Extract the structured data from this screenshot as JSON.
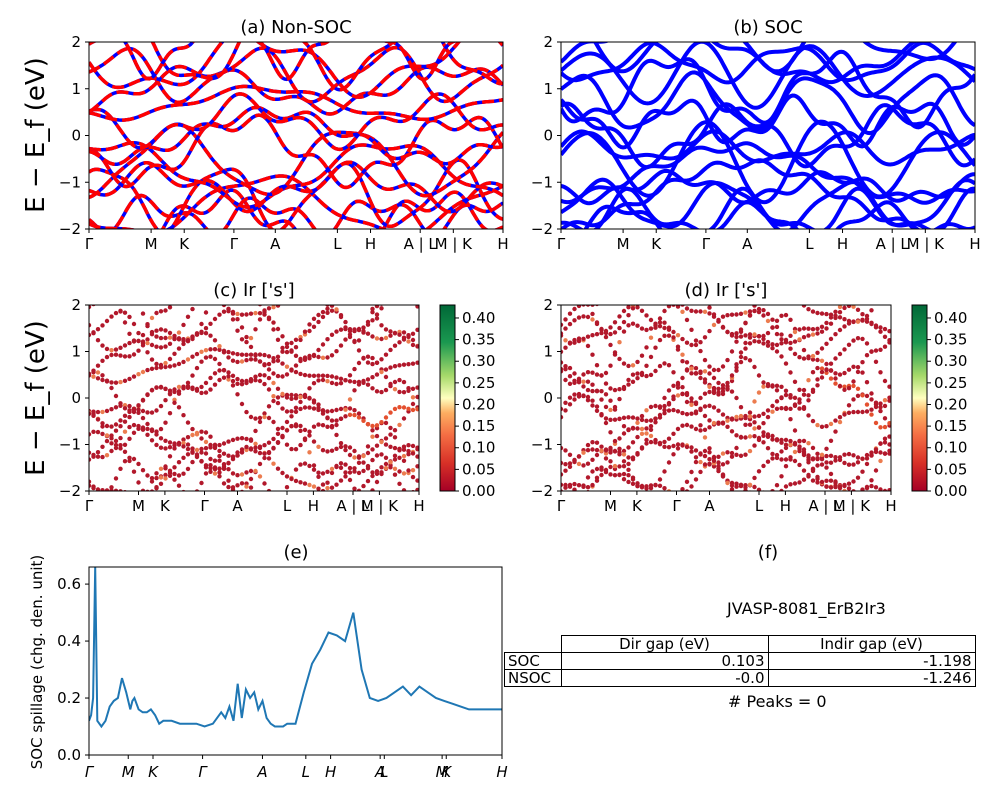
{
  "panels": {
    "a": {
      "title": "(a) Non-SOC"
    },
    "b": {
      "title": "(b) SOC"
    },
    "c": {
      "title": "(c)  Ir ['s']"
    },
    "d": {
      "title": "(d) Ir ['s']"
    },
    "e": {
      "title": "(e)"
    },
    "f": {
      "title": "(f)"
    }
  },
  "ylabel_band": "E − E_f (eV)",
  "ylabel_spillage": "SOC spillage (chg. den. unit)",
  "kpath_ticks": [
    "Γ",
    "M",
    "K",
    "Γ",
    "A",
    "L",
    "H",
    "A | L",
    "M | K",
    "H"
  ],
  "kpath_ticks_cd": [
    "Γ",
    "M",
    "K",
    "Γ",
    "A",
    "L",
    "H",
    "A | L",
    "M | K",
    "H"
  ],
  "kpath_ticks_e": [
    "Γ",
    "M",
    "K",
    "Γ",
    "A",
    "L",
    "H",
    "A",
    "L",
    "M",
    "K",
    "H"
  ],
  "energy_ticks": [
    "2",
    "1",
    "0",
    "−1",
    "−2"
  ],
  "colorbar_ticks": [
    "0.40",
    "0.35",
    "0.30",
    "0.25",
    "0.20",
    "0.15",
    "0.10",
    "0.05",
    "0.00"
  ],
  "spillage_ticks": [
    "0.6",
    "0.4",
    "0.2",
    "0.0"
  ],
  "colors": {
    "nonsoc": "#ff0000",
    "nonsoc_dash": "#0000ff",
    "soc": "#0000ff",
    "spillage": "#1f77b4"
  },
  "chart_data": [
    {
      "type": "line",
      "title": "(a) Non-SOC",
      "ylabel": "E − E_f (eV)",
      "ylim": [
        -2,
        2
      ],
      "xticklabels": [
        "Γ",
        "M",
        "K",
        "Γ",
        "A",
        "L",
        "H",
        "A | L",
        "M | K",
        "H"
      ],
      "series": [
        {
          "name": "Non-SOC bands"
        }
      ]
    },
    {
      "type": "line",
      "title": "(b) SOC",
      "ylim": [
        -2,
        2
      ],
      "xticklabels": [
        "Γ",
        "M",
        "K",
        "Γ",
        "A",
        "L",
        "H",
        "A | L",
        "M | K",
        "H"
      ],
      "series": [
        {
          "name": "SOC bands"
        }
      ]
    },
    {
      "type": "scatter",
      "title": "(c)  Ir ['s']",
      "ylabel": "E − E_f (eV)",
      "ylim": [
        -2,
        2
      ],
      "colorbar": {
        "min": 0.0,
        "max": 0.43,
        "colormap": "RdYlGn"
      }
    },
    {
      "type": "scatter",
      "title": "(d) Ir ['s']",
      "ylim": [
        -2,
        2
      ],
      "colorbar": {
        "min": 0.0,
        "max": 0.43,
        "colormap": "RdYlGn"
      }
    },
    {
      "type": "line",
      "title": "(e)",
      "ylabel": "SOC spillage (chg. den. unit)",
      "ylim": [
        0,
        0.66
      ],
      "xticklabels": [
        "Γ",
        "M",
        "K",
        "Γ",
        "A",
        "L",
        "H",
        "A",
        "L",
        "M",
        "K",
        "H"
      ],
      "x": [
        0,
        0.5,
        1,
        1.5,
        2,
        3,
        4,
        5,
        6,
        7,
        8,
        9,
        10,
        10.5,
        11,
        12,
        13,
        14,
        15,
        16,
        17,
        18,
        20,
        22,
        24,
        26,
        28,
        30,
        32,
        33,
        34,
        35,
        36,
        37,
        38,
        39,
        40,
        41,
        42,
        43,
        44,
        45,
        46,
        47,
        48,
        49,
        50,
        52,
        54,
        56,
        58,
        60,
        62,
        64,
        66,
        68,
        70,
        72,
        74,
        76,
        78,
        80,
        82,
        84,
        86,
        88,
        90,
        92,
        93,
        94,
        95,
        96,
        97,
        98,
        99,
        100
      ],
      "series": [
        {
          "name": "SOC spillage",
          "values": [
            0.12,
            0.14,
            0.2,
            0.66,
            0.12,
            0.1,
            0.12,
            0.17,
            0.19,
            0.2,
            0.27,
            0.22,
            0.16,
            0.19,
            0.2,
            0.16,
            0.15,
            0.15,
            0.16,
            0.14,
            0.11,
            0.12,
            0.12,
            0.11,
            0.11,
            0.11,
            0.1,
            0.11,
            0.15,
            0.13,
            0.17,
            0.12,
            0.25,
            0.13,
            0.23,
            0.2,
            0.22,
            0.16,
            0.19,
            0.13,
            0.11,
            0.1,
            0.1,
            0.1,
            0.11,
            0.11,
            0.11,
            0.22,
            0.32,
            0.37,
            0.43,
            0.42,
            0.4,
            0.5,
            0.3,
            0.2,
            0.19,
            0.2,
            0.22,
            0.24,
            0.21,
            0.24,
            0.22,
            0.2,
            0.19,
            0.18,
            0.17,
            0.16,
            0.16,
            0.16,
            0.16,
            0.16,
            0.16,
            0.16,
            0.16,
            0.16
          ]
        }
      ]
    },
    {
      "type": "table",
      "title": "(f)",
      "columns": [
        "",
        "Dir gap (eV)",
        "Indir gap (eV)"
      ],
      "rows": [
        [
          "SOC",
          "0.103",
          "-1.198"
        ],
        [
          "NSOC",
          "-0.0",
          "-1.246"
        ]
      ]
    }
  ],
  "panel_f": {
    "material": "JVASP-8081_ErB2Ir3",
    "col_dir": "Dir gap (eV)",
    "col_indir": "Indir gap (eV)",
    "row_soc": "SOC",
    "row_nsoc": "NSOC",
    "soc_dir": "0.103",
    "soc_indir": "-1.198",
    "nsoc_dir": "-0.0",
    "nsoc_indir": "-1.246",
    "peaks": "# Peaks = 0"
  }
}
